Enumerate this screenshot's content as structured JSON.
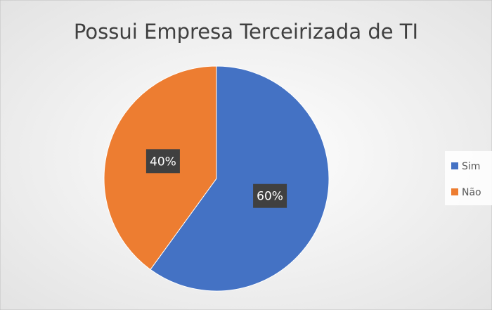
{
  "chart_data": {
    "type": "pie",
    "title": "Possui Empresa Terceirizada de TI",
    "categories": [
      "Sim",
      "Não"
    ],
    "values": [
      60,
      40
    ],
    "value_labels": [
      "60%",
      "40%"
    ],
    "colors": [
      "#4472c4",
      "#ed7d31"
    ],
    "legend": "right"
  }
}
